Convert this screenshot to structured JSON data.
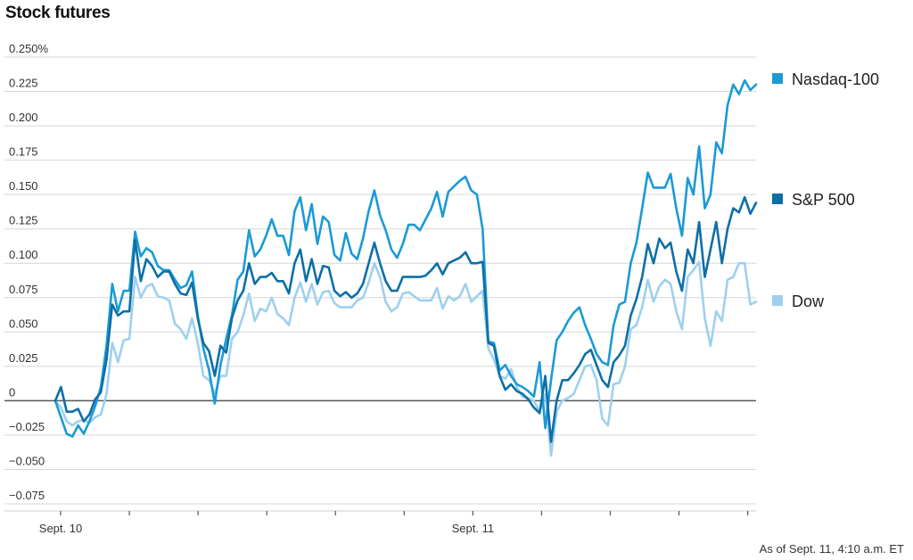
{
  "header": {
    "title": "Stock futures"
  },
  "footer": {
    "note": "As of Sept. 11, 4:10 a.m. ET"
  },
  "chart_data": {
    "type": "line",
    "title": "Stock futures",
    "ylim": [
      -0.075,
      0.25
    ],
    "yticks": [
      -0.075,
      -0.05,
      -0.025,
      0,
      0.025,
      0.05,
      0.075,
      0.1,
      0.125,
      0.15,
      0.175,
      0.2,
      0.225,
      0.25
    ],
    "ytick_labels": [
      "−0.075",
      "−0.050",
      "−0.025",
      "0",
      "0.025",
      "0.050",
      "0.075",
      "0.100",
      "0.125",
      "0.150",
      "0.175",
      "0.200",
      "0.225",
      "0.250%"
    ],
    "xtick_labels": [
      {
        "label": "Sept. 10",
        "at": 0
      },
      {
        "label": "Sept. 11",
        "at": 60
      }
    ],
    "x_minor_ticks": [
      0,
      10,
      20,
      30,
      40,
      50,
      60,
      70,
      80,
      90,
      100
    ],
    "x_max": 102,
    "grid": "horizontal",
    "legend_position": "right",
    "series": [
      {
        "name": "Nasdaq-100",
        "color": "#1a9ad6",
        "values": [
          0.0,
          -0.012,
          -0.024,
          -0.026,
          -0.018,
          -0.024,
          -0.015,
          -0.004,
          0.01,
          0.04,
          0.085,
          0.065,
          0.08,
          0.08,
          0.123,
          0.105,
          0.111,
          0.108,
          0.098,
          0.095,
          0.095,
          0.088,
          0.082,
          0.084,
          0.094,
          0.062,
          0.038,
          0.022,
          -0.002,
          0.026,
          0.045,
          0.062,
          0.088,
          0.094,
          0.124,
          0.105,
          0.11,
          0.12,
          0.132,
          0.12,
          0.12,
          0.106,
          0.138,
          0.148,
          0.124,
          0.143,
          0.114,
          0.134,
          0.13,
          0.106,
          0.102,
          0.122,
          0.107,
          0.103,
          0.118,
          0.138,
          0.153,
          0.135,
          0.124,
          0.11,
          0.104,
          0.114,
          0.128,
          0.128,
          0.124,
          0.132,
          0.14,
          0.152,
          0.134,
          0.152,
          0.156,
          0.16,
          0.163,
          0.153,
          0.15,
          0.125,
          0.043,
          0.042,
          0.022,
          0.026,
          0.018,
          0.012,
          0.01,
          0.007,
          0.003,
          0.028,
          -0.02,
          0.015,
          0.044,
          0.05,
          0.058,
          0.064,
          0.068,
          0.055,
          0.045,
          0.034,
          0.028,
          0.026,
          0.055,
          0.07,
          0.072,
          0.1,
          0.115,
          0.14,
          0.166,
          0.155,
          0.155,
          0.155,
          0.165,
          0.14,
          0.12,
          0.162,
          0.15,
          0.185,
          0.14,
          0.15,
          0.188,
          0.18,
          0.215,
          0.23,
          0.223,
          0.233,
          0.226,
          0.23
        ]
      },
      {
        "name": "S&P 500",
        "color": "#0d6fa8",
        "values": [
          0.0,
          0.01,
          -0.008,
          -0.008,
          -0.006,
          -0.015,
          -0.01,
          0.001,
          0.006,
          0.03,
          0.07,
          0.062,
          0.065,
          0.065,
          0.117,
          0.087,
          0.103,
          0.098,
          0.09,
          0.094,
          0.094,
          0.085,
          0.078,
          0.077,
          0.086,
          0.06,
          0.042,
          0.036,
          0.018,
          0.04,
          0.035,
          0.06,
          0.073,
          0.08,
          0.1,
          0.085,
          0.09,
          0.09,
          0.093,
          0.087,
          0.087,
          0.078,
          0.1,
          0.11,
          0.087,
          0.103,
          0.085,
          0.098,
          0.097,
          0.08,
          0.076,
          0.079,
          0.075,
          0.078,
          0.085,
          0.1,
          0.115,
          0.1,
          0.087,
          0.08,
          0.08,
          0.09,
          0.09,
          0.09,
          0.09,
          0.091,
          0.095,
          0.1,
          0.092,
          0.1,
          0.102,
          0.104,
          0.108,
          0.1,
          0.1,
          0.101,
          0.042,
          0.04,
          0.018,
          0.008,
          0.012,
          0.007,
          0.005,
          0.001,
          -0.005,
          -0.009,
          0.018,
          -0.03,
          0.0,
          0.015,
          0.015,
          0.02,
          0.026,
          0.034,
          0.037,
          0.026,
          0.015,
          0.01,
          0.028,
          0.033,
          0.04,
          0.062,
          0.074,
          0.09,
          0.114,
          0.1,
          0.118,
          0.111,
          0.115,
          0.094,
          0.08,
          0.11,
          0.1,
          0.13,
          0.09,
          0.11,
          0.13,
          0.1,
          0.125,
          0.14,
          0.137,
          0.148,
          0.136,
          0.144
        ]
      },
      {
        "name": "Dow",
        "color": "#9ed0ee",
        "values": [
          0.0,
          -0.005,
          -0.015,
          -0.018,
          -0.015,
          -0.014,
          -0.016,
          -0.012,
          -0.01,
          0.005,
          0.042,
          0.028,
          0.044,
          0.045,
          0.09,
          0.075,
          0.083,
          0.085,
          0.076,
          0.075,
          0.073,
          0.056,
          0.052,
          0.045,
          0.06,
          0.042,
          0.018,
          0.015,
          0.005,
          0.018,
          0.018,
          0.045,
          0.05,
          0.062,
          0.078,
          0.058,
          0.067,
          0.065,
          0.075,
          0.063,
          0.06,
          0.055,
          0.075,
          0.086,
          0.072,
          0.085,
          0.07,
          0.079,
          0.08,
          0.071,
          0.068,
          0.068,
          0.068,
          0.073,
          0.075,
          0.086,
          0.1,
          0.09,
          0.072,
          0.065,
          0.068,
          0.078,
          0.079,
          0.076,
          0.073,
          0.073,
          0.073,
          0.082,
          0.067,
          0.076,
          0.073,
          0.076,
          0.085,
          0.072,
          0.076,
          0.08,
          0.038,
          0.03,
          0.018,
          0.016,
          0.023,
          0.01,
          0.003,
          0.002,
          0.0,
          -0.008,
          0.005,
          -0.04,
          -0.008,
          0.0,
          0.002,
          0.005,
          0.015,
          0.025,
          0.026,
          0.015,
          -0.013,
          -0.018,
          0.012,
          0.013,
          0.025,
          0.052,
          0.055,
          0.068,
          0.088,
          0.072,
          0.083,
          0.088,
          0.085,
          0.065,
          0.052,
          0.09,
          0.095,
          0.101,
          0.06,
          0.04,
          0.065,
          0.058,
          0.088,
          0.09,
          0.1,
          0.1,
          0.07,
          0.072
        ]
      }
    ]
  }
}
